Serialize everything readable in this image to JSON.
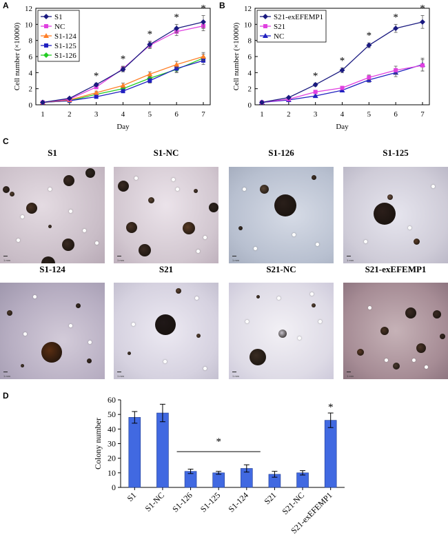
{
  "panels": {
    "a": "A",
    "b": "B",
    "c": "C",
    "d": "D"
  },
  "chart_data": [
    {
      "id": "A",
      "type": "line",
      "xlabel": "Day",
      "ylabel": "Cell number (×10000)",
      "x": [
        1,
        2,
        3,
        4,
        5,
        6,
        7
      ],
      "xlim": [
        1,
        7
      ],
      "ylim": [
        0,
        12
      ],
      "yticks": [
        0,
        2,
        4,
        6,
        8,
        10,
        12
      ],
      "series": [
        {
          "name": "S1",
          "color": "#1a1a80",
          "marker": "diamond",
          "values": [
            0.3,
            0.8,
            2.5,
            4.4,
            7.5,
            9.5,
            10.3
          ],
          "err": [
            0.1,
            0.1,
            0.2,
            0.3,
            0.4,
            0.5,
            0.8
          ]
        },
        {
          "name": "NC",
          "color": "#e040e0",
          "marker": "square",
          "values": [
            0.3,
            0.7,
            2.2,
            4.5,
            7.4,
            9.1,
            9.8
          ],
          "err": [
            0.1,
            0.1,
            0.2,
            0.3,
            0.4,
            0.5,
            0.6
          ]
        },
        {
          "name": "S1-124",
          "color": "#ff7f27",
          "marker": "triangle",
          "values": [
            0.3,
            0.6,
            1.5,
            2.4,
            3.8,
            5.0,
            6.0
          ],
          "err": [
            0.1,
            0.1,
            0.2,
            0.3,
            0.3,
            0.4,
            0.5
          ]
        },
        {
          "name": "S1-125",
          "color": "#2020c0",
          "marker": "square",
          "values": [
            0.3,
            0.5,
            1.0,
            1.7,
            3.0,
            4.5,
            5.5
          ],
          "err": [
            0.1,
            0.1,
            0.1,
            0.2,
            0.3,
            0.4,
            0.5
          ]
        },
        {
          "name": "S1-126",
          "color": "#22cc22",
          "marker": "diamond",
          "values": [
            0.3,
            0.5,
            1.3,
            2.0,
            3.3,
            4.4,
            5.8
          ],
          "err": [
            0.1,
            0.1,
            0.2,
            0.2,
            0.3,
            0.4,
            0.5
          ]
        }
      ],
      "significance": {
        "days": [
          3,
          4,
          5,
          6,
          7
        ],
        "symbol": "*"
      }
    },
    {
      "id": "B",
      "type": "line",
      "xlabel": "Day",
      "ylabel": "Cell number (×10000)",
      "x": [
        1,
        2,
        3,
        4,
        5,
        6,
        7
      ],
      "xlim": [
        1,
        7
      ],
      "ylim": [
        0,
        12
      ],
      "yticks": [
        0,
        2,
        4,
        6,
        8,
        10,
        12
      ],
      "series": [
        {
          "name": "S21-exEFEMP1",
          "color": "#1a1a80",
          "marker": "diamond",
          "values": [
            0.3,
            0.9,
            2.5,
            4.3,
            7.4,
            9.5,
            10.3
          ],
          "err": [
            0.1,
            0.1,
            0.2,
            0.3,
            0.3,
            0.5,
            0.8
          ]
        },
        {
          "name": "S21",
          "color": "#e040e0",
          "marker": "square",
          "values": [
            0.3,
            0.7,
            1.6,
            2.1,
            3.4,
            4.3,
            4.9
          ],
          "err": [
            0.1,
            0.1,
            0.2,
            0.2,
            0.3,
            0.5,
            0.7
          ]
        },
        {
          "name": "NC",
          "color": "#2020c0",
          "marker": "triangle",
          "values": [
            0.3,
            0.6,
            1.1,
            1.8,
            3.1,
            4.0,
            5.0
          ],
          "err": [
            0.1,
            0.1,
            0.1,
            0.2,
            0.3,
            0.5,
            0.8
          ]
        }
      ],
      "significance": {
        "days": [
          3,
          4,
          5,
          6,
          7
        ],
        "symbol": "*"
      }
    },
    {
      "id": "D",
      "type": "bar",
      "ylabel": "Colony number",
      "categories": [
        "S1",
        "S1-NC",
        "S1-126",
        "S1-125",
        "S1-124",
        "S21",
        "S21-NC",
        "S21-exEFEMP1"
      ],
      "values": [
        48,
        51,
        11,
        10,
        13,
        9,
        10,
        46
      ],
      "err": [
        4,
        6,
        1.5,
        1,
        2.5,
        2,
        1.5,
        5
      ],
      "ylim": [
        0,
        60
      ],
      "yticks": [
        0,
        10,
        20,
        30,
        40,
        50,
        60
      ],
      "color": "#4169e1",
      "significance": {
        "symbol": "*",
        "bracket": [
          "S1-126",
          "S1-124"
        ],
        "single": "S21-exEFEMP1"
      }
    }
  ],
  "photos": [
    {
      "title": "S1"
    },
    {
      "title": "S1-NC"
    },
    {
      "title": "S1-126"
    },
    {
      "title": "S1-125"
    },
    {
      "title": "S1-124"
    },
    {
      "title": "S21"
    },
    {
      "title": "S21-NC"
    },
    {
      "title": "S21-exEFEMP1"
    }
  ],
  "scale_text": "1 mm"
}
